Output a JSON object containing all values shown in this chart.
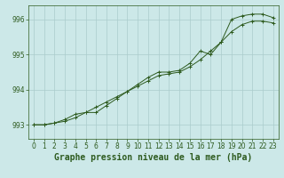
{
  "title": "Graphe pression niveau de la mer (hPa)",
  "x": [
    0,
    1,
    2,
    3,
    4,
    5,
    6,
    7,
    8,
    9,
    10,
    11,
    12,
    13,
    14,
    15,
    16,
    17,
    18,
    19,
    20,
    21,
    22,
    23
  ],
  "line1": [
    993.0,
    993.0,
    993.05,
    993.1,
    993.2,
    993.35,
    993.5,
    993.65,
    993.8,
    993.95,
    994.1,
    994.25,
    994.4,
    994.45,
    994.5,
    994.65,
    994.85,
    995.1,
    995.35,
    995.65,
    995.85,
    995.95,
    995.95,
    995.9
  ],
  "line2": [
    993.0,
    993.0,
    993.05,
    993.15,
    993.3,
    993.35,
    993.35,
    993.55,
    993.75,
    993.95,
    994.15,
    994.35,
    994.5,
    994.5,
    994.55,
    994.75,
    995.1,
    995.0,
    995.35,
    996.0,
    996.1,
    996.15,
    996.15,
    996.05
  ],
  "ylim": [
    992.6,
    996.4
  ],
  "yticks": [
    993,
    994,
    995,
    996
  ],
  "xticks": [
    0,
    1,
    2,
    3,
    4,
    5,
    6,
    7,
    8,
    9,
    10,
    11,
    12,
    13,
    14,
    15,
    16,
    17,
    18,
    19,
    20,
    21,
    22,
    23
  ],
  "bg_color": "#cce8e8",
  "grid_color": "#aacccc",
  "line_color": "#2d5a1e",
  "title_color": "#2d5a1e",
  "axis_color": "#2d5a1e",
  "title_fontsize": 7.0,
  "tick_fontsize": 5.5
}
